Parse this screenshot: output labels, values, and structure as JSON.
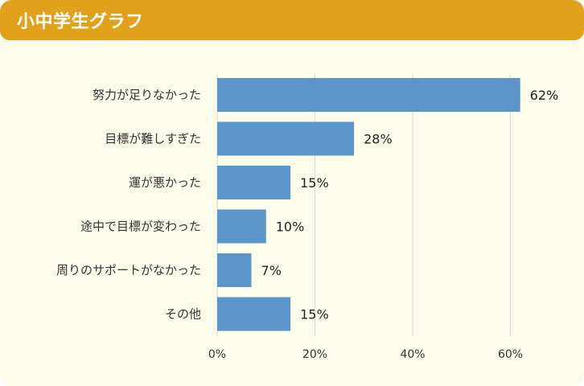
{
  "header": {
    "title": "小中学生グラフ"
  },
  "colors": {
    "header": "#e1a11b",
    "background": "#fdfbea",
    "bar": "#5b95c9",
    "grid": "#d9d9d9"
  },
  "chart_data": {
    "type": "bar",
    "orientation": "horizontal",
    "categories": [
      "努力が足りなかった",
      "目標が難しすぎた",
      "運が悪かった",
      "途中で目標が変わった",
      "周りのサポートがなかった",
      "その他"
    ],
    "values": [
      62,
      28,
      15,
      10,
      7,
      15
    ],
    "value_labels": [
      "62%",
      "28%",
      "15%",
      "10%",
      "7%",
      "15%"
    ],
    "xticks": [
      0,
      20,
      40,
      60
    ],
    "xtick_labels": [
      "0%",
      "20%",
      "40%",
      "60%"
    ],
    "xlim": [
      0,
      75
    ],
    "grid": true,
    "legend": "none"
  }
}
